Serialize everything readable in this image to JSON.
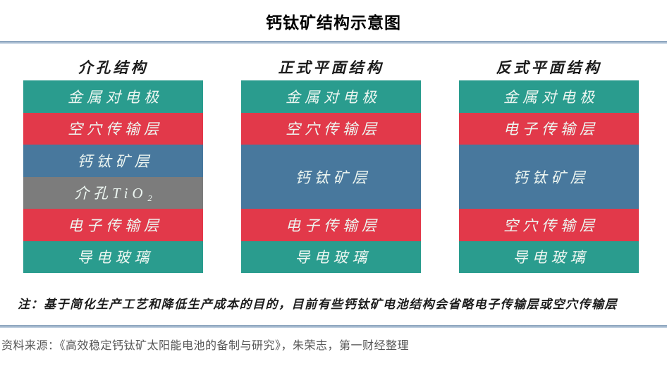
{
  "title": "钙钛矿结构示意图",
  "columns": [
    {
      "header": "介孔结构",
      "layers": [
        {
          "label": "金属对电极",
          "color": "teal",
          "height": 1
        },
        {
          "label": "空穴传输层",
          "color": "red",
          "height": 1
        },
        {
          "label": "钙钛矿层",
          "color": "blue",
          "height": 1
        },
        {
          "label": "介孔TiO₂",
          "color": "gray",
          "height": 1
        },
        {
          "label": "电子传输层",
          "color": "red",
          "height": 1
        },
        {
          "label": "导电玻璃",
          "color": "teal",
          "height": 1
        }
      ]
    },
    {
      "header": "正式平面结构",
      "layers": [
        {
          "label": "金属对电极",
          "color": "teal",
          "height": 1
        },
        {
          "label": "空穴传输层",
          "color": "red",
          "height": 1
        },
        {
          "label": "钙钛矿层",
          "color": "blue",
          "height": 2
        },
        {
          "label": "电子传输层",
          "color": "red",
          "height": 1
        },
        {
          "label": "导电玻璃",
          "color": "teal",
          "height": 1
        }
      ]
    },
    {
      "header": "反式平面结构",
      "layers": [
        {
          "label": "金属对电极",
          "color": "teal",
          "height": 1
        },
        {
          "label": "电子传输层",
          "color": "red",
          "height": 1
        },
        {
          "label": "钙钛矿层",
          "color": "blue",
          "height": 2
        },
        {
          "label": "空穴传输层",
          "color": "red",
          "height": 1
        },
        {
          "label": "导电玻璃",
          "color": "teal",
          "height": 1
        }
      ]
    }
  ],
  "note": "注：基于简化生产工艺和降低生产成本的目的，目前有些钙钛矿电池结构会省略电子传输层或空穴传输层",
  "source": "资料来源：《高效稳定钙钛矿太阳能电池的备制与研究》，朱荣志，第一财经整理",
  "colors": {
    "teal": "#2a9c8e",
    "red": "#e2394a",
    "blue": "#48789d",
    "gray": "#7c7c7c"
  }
}
